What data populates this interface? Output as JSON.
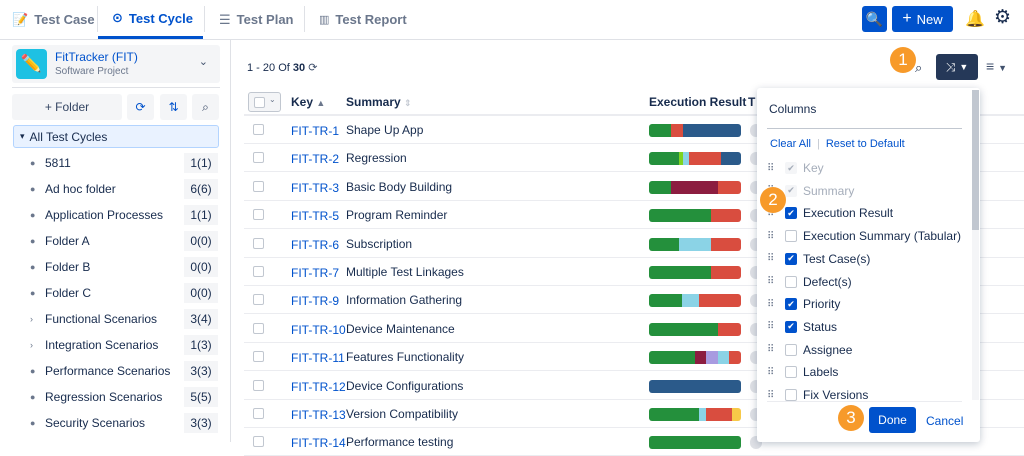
{
  "tabs": [
    {
      "label": "Test Case",
      "icon": "edit-doc-icon"
    },
    {
      "label": "Test Cycle",
      "icon": "play-cycle-icon",
      "active": true
    },
    {
      "label": "Test Plan",
      "icon": "list-doc-icon"
    },
    {
      "label": "Test Report",
      "icon": "bar-chart-icon"
    }
  ],
  "header": {
    "new_label": "New",
    "new_icon": "+"
  },
  "project": {
    "name": "FitTracker (FIT)",
    "type": "Software Project"
  },
  "sidebar": {
    "add_folder": "+ Folder",
    "all_label": "All Test Cycles",
    "folders": [
      {
        "name": "5811",
        "count": "1(1)",
        "expandable": false
      },
      {
        "name": "Ad hoc folder",
        "count": "6(6)",
        "expandable": false
      },
      {
        "name": "Application Processes",
        "count": "1(1)",
        "expandable": false
      },
      {
        "name": "Folder A",
        "count": "0(0)",
        "expandable": false
      },
      {
        "name": "Folder B",
        "count": "0(0)",
        "expandable": false
      },
      {
        "name": "Folder C",
        "count": "0(0)",
        "expandable": false
      },
      {
        "name": "Functional Scenarios",
        "count": "3(4)",
        "expandable": true
      },
      {
        "name": "Integration Scenarios",
        "count": "1(3)",
        "expandable": true
      },
      {
        "name": "Performance Scenarios",
        "count": "3(3)",
        "expandable": false
      },
      {
        "name": "Regression Scenarios",
        "count": "5(5)",
        "expandable": false
      },
      {
        "name": "Security Scenarios",
        "count": "3(3)",
        "expandable": false
      }
    ]
  },
  "pagination": {
    "range": "1 - 20",
    "of": "Of",
    "total": "30"
  },
  "table": {
    "headers": {
      "key": "Key",
      "summary": "Summary",
      "execution": "Execution Result",
      "next": "T"
    },
    "colors": {
      "pass": "#24903c",
      "fail": "#d94d3f",
      "unexecuted": "#2b5a8a",
      "lime": "#7ed321",
      "info": "#8bd3e6",
      "blocked": "#8c1d40",
      "purple": "#a89be0",
      "warn": "#f7c948"
    },
    "rows": [
      {
        "key": "FIT-TR-1",
        "summary": "Shape Up App",
        "exec": [
          [
            "pass",
            24
          ],
          [
            "fail",
            13
          ],
          [
            "unexecuted",
            63
          ]
        ]
      },
      {
        "key": "FIT-TR-2",
        "summary": "Regression",
        "exec": [
          [
            "pass",
            33
          ],
          [
            "lime",
            4
          ],
          [
            "info",
            7
          ],
          [
            "fail",
            34
          ],
          [
            "unexecuted",
            22
          ]
        ]
      },
      {
        "key": "FIT-TR-3",
        "summary": "Basic Body Building",
        "exec": [
          [
            "pass",
            24
          ],
          [
            "blocked",
            51
          ],
          [
            "fail",
            25
          ]
        ]
      },
      {
        "key": "FIT-TR-5",
        "summary": "Program Reminder",
        "exec": [
          [
            "pass",
            67
          ],
          [
            "fail",
            33
          ]
        ]
      },
      {
        "key": "FIT-TR-6",
        "summary": "Subscription",
        "exec": [
          [
            "pass",
            33
          ],
          [
            "info",
            34
          ],
          [
            "fail",
            33
          ]
        ]
      },
      {
        "key": "FIT-TR-7",
        "summary": "Multiple Test Linkages",
        "exec": [
          [
            "pass",
            67
          ],
          [
            "fail",
            33
          ]
        ]
      },
      {
        "key": "FIT-TR-9",
        "summary": "Information Gathering",
        "exec": [
          [
            "pass",
            36
          ],
          [
            "info",
            18
          ],
          [
            "fail",
            46
          ]
        ]
      },
      {
        "key": "FIT-TR-10",
        "summary": "Device Maintenance",
        "exec": [
          [
            "pass",
            75
          ],
          [
            "fail",
            25
          ]
        ]
      },
      {
        "key": "FIT-TR-11",
        "summary": "Features Functionality",
        "exec": [
          [
            "pass",
            50
          ],
          [
            "blocked",
            12
          ],
          [
            "purple",
            13
          ],
          [
            "info",
            12
          ],
          [
            "fail",
            13
          ]
        ]
      },
      {
        "key": "FIT-TR-12",
        "summary": "Device Configurations",
        "exec": [
          [
            "unexecuted",
            100
          ]
        ]
      },
      {
        "key": "FIT-TR-13",
        "summary": "Version Compatibility",
        "exec": [
          [
            "pass",
            54
          ],
          [
            "info",
            8
          ],
          [
            "fail",
            28
          ],
          [
            "warn",
            10
          ]
        ]
      },
      {
        "key": "FIT-TR-14",
        "summary": "Performance testing",
        "exec": [
          [
            "pass",
            100
          ]
        ]
      }
    ]
  },
  "columns_panel": {
    "title": "Columns",
    "clear_all": "Clear All",
    "reset": "Reset to Default",
    "done": "Done",
    "cancel": "Cancel",
    "items": [
      {
        "label": "Key",
        "checked": true,
        "disabled": true
      },
      {
        "label": "Summary",
        "checked": true,
        "disabled": true
      },
      {
        "label": "Execution Result",
        "checked": true
      },
      {
        "label": "Execution Summary (Tabular)",
        "checked": false
      },
      {
        "label": "Test Case(s)",
        "checked": true
      },
      {
        "label": "Defect(s)",
        "checked": false
      },
      {
        "label": "Priority",
        "checked": true
      },
      {
        "label": "Status",
        "checked": true
      },
      {
        "label": "Assignee",
        "checked": false
      },
      {
        "label": "Labels",
        "checked": false
      },
      {
        "label": "Fix Versions",
        "checked": false
      }
    ]
  },
  "badges": [
    "1",
    "2",
    "3"
  ]
}
